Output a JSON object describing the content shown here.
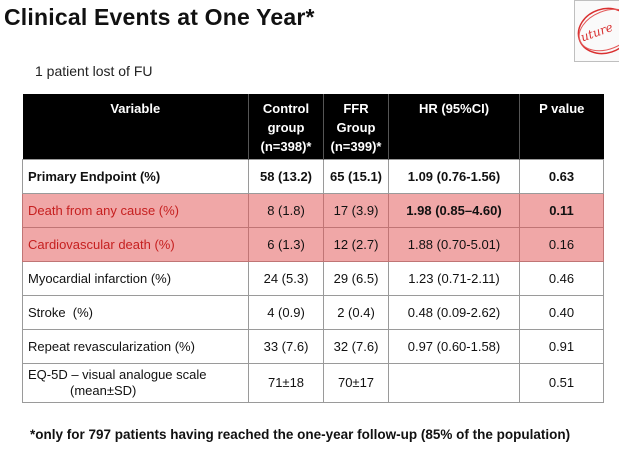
{
  "title": "Clinical Events at One Year*",
  "subtitle": "1 patient lost of FU",
  "table": {
    "headers": [
      {
        "lines": [
          "Variable"
        ]
      },
      {
        "lines": [
          "Control",
          "group",
          "(n=398)*"
        ]
      },
      {
        "lines": [
          "FFR",
          "Group",
          "(n=399)*"
        ]
      },
      {
        "lines": [
          "HR (95%CI)"
        ]
      },
      {
        "lines": [
          "P value"
        ]
      }
    ],
    "rows": [
      {
        "variable": "Primary Endpoint (%)",
        "control": "58 (13.2)",
        "ffr": "65 (15.1)",
        "hr": "1.09 (0.76-1.56)",
        "p": "0.63"
      },
      {
        "variable": "Death from any cause (%)",
        "control": "8 (1.8)",
        "ffr": "17 (3.9)",
        "hr": "1.98 (0.85–4.60)",
        "p": "0.11"
      },
      {
        "variable": "Cardiovascular death (%)",
        "control": "6 (1.3)",
        "ffr": "12 (2.7)",
        "hr": "1.88 (0.70-5.01)",
        "p": "0.16"
      },
      {
        "variable": "Myocardial infarction (%)",
        "control": "24 (5.3)",
        "ffr": "29 (6.5)",
        "hr": "1.23 (0.71-2.11)",
        "p": "0.46"
      },
      {
        "variable": "Stroke  (%)",
        "control": "4 (0.9)",
        "ffr": "2 (0.4)",
        "hr": "0.48 (0.09-2.62)",
        "p": "0.40"
      },
      {
        "variable": "Repeat revascularization (%)",
        "control": "33 (7.6)",
        "ffr": "32 (7.6)",
        "hr": "0.97 (0.60-1.58)",
        "p": "0.91"
      },
      {
        "variable": "EQ-5D – visual analogue scale",
        "variable_sub": "(mean±SD)",
        "control": "71±18",
        "ffr": "70±17",
        "hr": "",
        "p": "0.51"
      }
    ]
  },
  "footnote": "*only for 797 patients having reached the one-year follow-up (85% of the population)",
  "logo": {
    "text": "uture",
    "color": "#d93030"
  }
}
